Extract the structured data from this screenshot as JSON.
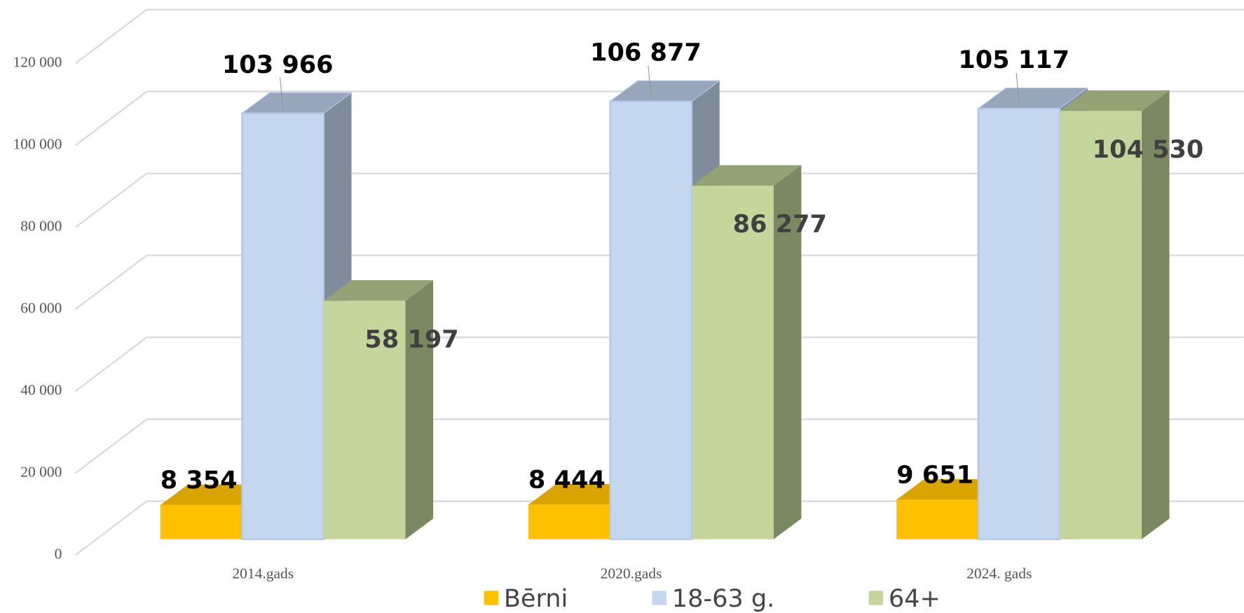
{
  "chart_data": {
    "type": "bar3d",
    "categories": [
      "2014.gads",
      "2020.gads",
      "2024. gads"
    ],
    "series": [
      {
        "name": "Bērni",
        "color": "#ffc000",
        "values": [
          8354,
          8444,
          9651
        ],
        "value_labels": [
          "8 354",
          "8 444",
          "9 651"
        ]
      },
      {
        "name": "18-63 g.",
        "color": "#c5d7ef",
        "values": [
          103966,
          106877,
          105117
        ],
        "value_labels": [
          "103 966",
          "106 877",
          "105 117"
        ]
      },
      {
        "name": "64+",
        "color": "#c4d69b",
        "values": [
          58197,
          86277,
          104530
        ],
        "value_labels": [
          "58 197",
          "86 277",
          "104 530"
        ]
      }
    ],
    "ylim": [
      0,
      120000
    ],
    "yticks": [
      0,
      {
        "value": 20000,
        "label": "20 000"
      },
      {
        "value": 40000,
        "label": "40 000"
      },
      {
        "value": 60000,
        "label": "60 000"
      },
      {
        "value": 80000,
        "label": "80 000"
      },
      {
        "value": 100000,
        "label": "100 000"
      },
      {
        "value": 120000,
        "label": "120 000"
      }
    ],
    "grid": true,
    "legend": "bottom"
  }
}
